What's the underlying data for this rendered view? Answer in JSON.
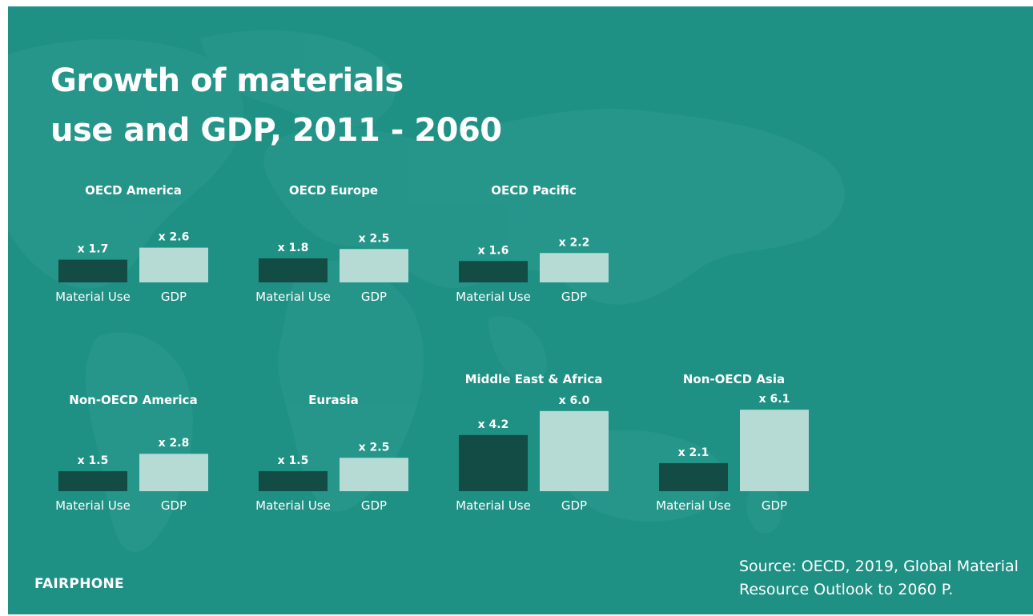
{
  "title_lines": [
    "Growth of materials",
    "use and GDP, 2011 - 2060"
  ],
  "brand": "FAIRPHONE",
  "source_lines": [
    "Source: OECD, 2019, Global Material",
    "Resource Outlook to 2060 P."
  ],
  "colors": {
    "background": "#1f9084",
    "material_use": "#124c44",
    "gdp": "#b5dbd4",
    "text": "#ffffff",
    "map": "#2a9a8e"
  },
  "chart_data": [
    {
      "type": "bar",
      "title": "OECD America",
      "categories": [
        "Material Use",
        "GDP"
      ],
      "values": [
        1.7,
        2.6
      ],
      "labels": [
        "x 1.7",
        "x 2.6"
      ]
    },
    {
      "type": "bar",
      "title": "OECD Europe",
      "categories": [
        "Material Use",
        "GDP"
      ],
      "values": [
        1.8,
        2.5
      ],
      "labels": [
        "x 1.8",
        "x 2.5"
      ]
    },
    {
      "type": "bar",
      "title": "OECD Pacific",
      "categories": [
        "Material Use",
        "GDP"
      ],
      "values": [
        1.6,
        2.2
      ],
      "labels": [
        "x 1.6",
        "x 2.2"
      ]
    },
    {
      "type": "bar",
      "title": "Non-OECD America",
      "categories": [
        "Material Use",
        "GDP"
      ],
      "values": [
        1.5,
        2.8
      ],
      "labels": [
        "x 1.5",
        "x 2.8"
      ]
    },
    {
      "type": "bar",
      "title": "Eurasia",
      "categories": [
        "Material Use",
        "GDP"
      ],
      "values": [
        1.5,
        2.5
      ],
      "labels": [
        "x 1.5",
        "x 2.5"
      ]
    },
    {
      "type": "bar",
      "title": "Middle East & Africa",
      "categories": [
        "Material Use",
        "GDP"
      ],
      "values": [
        4.2,
        6.0
      ],
      "labels": [
        "x 4.2",
        "x 6.0"
      ]
    },
    {
      "type": "bar",
      "title": "Non-OECD Asia",
      "categories": [
        "Material Use",
        "GDP"
      ],
      "values": [
        2.1,
        6.1
      ],
      "labels": [
        "x 2.1",
        "x 6.1"
      ]
    }
  ]
}
